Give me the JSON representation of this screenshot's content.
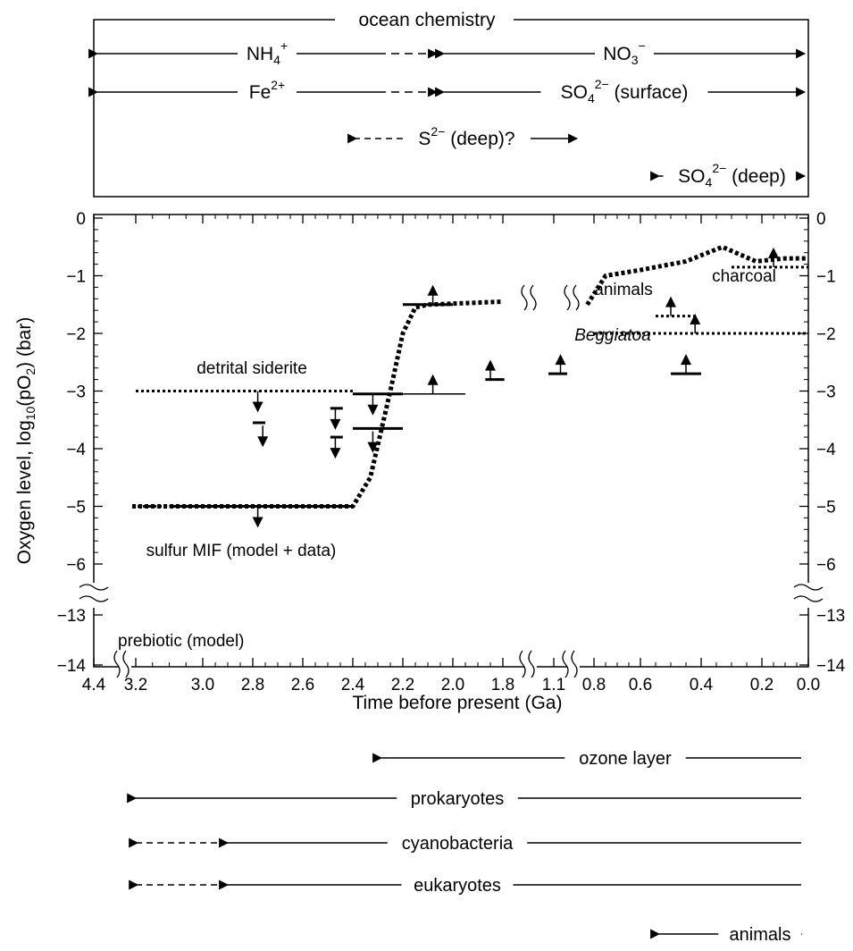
{
  "ocean_chemistry": {
    "title": "ocean chemistry",
    "rows": [
      {
        "label": "NH4+",
        "base": "NH",
        "sub": "4",
        "sup": "+",
        "from": 4.4,
        "to": 2.05,
        "dashed_from": 2.3
      },
      {
        "label": "NO3−",
        "base": "NO",
        "sub": "3",
        "sup": "−",
        "from": 2.05,
        "to": 0.0
      },
      {
        "label": "Fe2+",
        "base": "Fe",
        "sub": "",
        "sup": "2+",
        "from": 4.4,
        "to": 2.05,
        "dashed_from": 2.3
      },
      {
        "label": "SO42− (surface)",
        "base": "SO",
        "sub": "4",
        "sup": "2−",
        "suffix": " (surface)",
        "from": 2.05,
        "to": 0.0
      },
      {
        "label": "S2− (deep)?",
        "base": "S",
        "sub": "",
        "sup": "2−",
        "suffix": " (deep)?",
        "from": 2.4,
        "to": 0.9,
        "dashed": "left"
      },
      {
        "label": "SO42− (deep)",
        "base": "SO",
        "sub": "4",
        "sup": "2−",
        "suffix": " (deep)",
        "from": 0.55,
        "to": 0.0
      }
    ]
  },
  "chart_data": {
    "type": "line",
    "xlabel": "Time before present (Ga)",
    "ylabel_parts": {
      "a": "Oxygen level, log",
      "sub": "10",
      "b": "(pO",
      "sub2": "2",
      "c": ") (bar)"
    },
    "x_ticks": [
      "4.4",
      "3.2",
      "3.0",
      "2.8",
      "2.6",
      "2.4",
      "2.2",
      "2.0",
      "1.8",
      "1.1",
      "0.8",
      "0.6",
      "0.4",
      "0.2",
      "0.0"
    ],
    "y_ticks": [
      "0",
      "−1",
      "−2",
      "−3",
      "−4",
      "−5",
      "−6",
      "−13",
      "−14"
    ],
    "x_breaks": [
      "between 4.4 and 3.2",
      "between 1.8 and 1.1",
      "between 1.1 and 0.8"
    ],
    "y_break": "between −6 and −13",
    "oxygen_curve": [
      {
        "t": 3.3,
        "y": -5.0
      },
      {
        "t": 2.4,
        "y": -5.0
      },
      {
        "t": 2.33,
        "y": -4.5
      },
      {
        "t": 2.25,
        "y": -3.0
      },
      {
        "t": 2.2,
        "y": -2.0
      },
      {
        "t": 2.15,
        "y": -1.55
      },
      {
        "t": 2.1,
        "y": -1.5
      },
      {
        "t": 1.8,
        "y": -1.45
      }
    ],
    "oxygen_curve_late": [
      {
        "t": 0.85,
        "y": -1.5
      },
      {
        "t": 0.75,
        "y": -1.0
      },
      {
        "t": 0.6,
        "y": -0.9
      },
      {
        "t": 0.45,
        "y": -0.75
      },
      {
        "t": 0.33,
        "y": -0.5
      },
      {
        "t": 0.22,
        "y": -0.75
      },
      {
        "t": 0.1,
        "y": -0.7
      },
      {
        "t": 0.0,
        "y": -0.7
      }
    ],
    "constraints": [
      {
        "label": "sulfur MIF (model + data)",
        "from": 3.1,
        "to": 2.4,
        "y": -5.0,
        "kind": "upper",
        "dotted_lead": 3.3
      },
      {
        "label": "detrital siderite",
        "from": 3.2,
        "to": 2.4,
        "y": -3.0,
        "kind": "upper-dotted"
      },
      {
        "label": "animals",
        "from": 0.55,
        "to": 0.42,
        "y": -1.7,
        "kind": "lower-dotted"
      },
      {
        "label": "Beggiatoa",
        "from": 0.8,
        "to": 0.0,
        "y": -2.0,
        "kind": "lower-dotted"
      },
      {
        "label": "charcoal",
        "from": 0.3,
        "to": 0.0,
        "y": -0.85,
        "kind": "lower-dotted"
      }
    ],
    "upper_limits": [
      {
        "t": 2.78,
        "y": -5.0
      },
      {
        "t": 2.78,
        "y": -3.0
      },
      {
        "t": 2.76,
        "y": -3.6
      },
      {
        "t": 2.47,
        "y": -3.3
      },
      {
        "t": 2.47,
        "y": -3.8
      },
      {
        "t": 2.32,
        "y": -3.05
      },
      {
        "t": 2.32,
        "y": -3.7
      }
    ],
    "lower_limits": [
      {
        "t": 2.08,
        "y": -1.5
      },
      {
        "t": 2.08,
        "y": -3.05
      },
      {
        "t": 1.85,
        "y": -2.8
      },
      {
        "t": 1.05,
        "y": -2.7
      },
      {
        "t": 0.5,
        "y": -1.7
      },
      {
        "t": 0.42,
        "y": -2.0
      },
      {
        "t": 0.45,
        "y": -2.7
      },
      {
        "t": 0.15,
        "y": -0.85
      }
    ],
    "levels": [
      {
        "from": 2.2,
        "to": 2.0,
        "y": -1.5
      },
      {
        "from": 2.4,
        "to": 2.2,
        "y": -3.05
      },
      {
        "from": 2.2,
        "to": 1.95,
        "y": -3.05,
        "thin": true
      },
      {
        "from": 2.4,
        "to": 2.2,
        "y": -3.65
      },
      {
        "from": 1.87,
        "to": 1.78,
        "y": -2.8
      },
      {
        "from": 1.14,
        "to": 1.0,
        "y": -2.7
      },
      {
        "from": 0.5,
        "to": 0.4,
        "y": -2.7
      },
      {
        "from": 2.49,
        "to": 2.44,
        "y": -3.3
      },
      {
        "from": 2.49,
        "to": 2.44,
        "y": -3.8
      },
      {
        "from": 2.8,
        "to": 2.75,
        "y": -3.55
      }
    ],
    "prebiotic_label": "prebiotic (model)"
  },
  "life_timeline": [
    {
      "label": "ozone layer",
      "from": 2.3,
      "to": 0.0
    },
    {
      "label": "prokaryotes",
      "from": 3.3,
      "to": 0.0
    },
    {
      "label": "cyanobacteria",
      "from": 2.9,
      "to": 0.0,
      "dashed_from": 3.25
    },
    {
      "label": "eukaryotes",
      "from": 2.9,
      "to": 0.0,
      "dashed_from": 3.25
    },
    {
      "label": "animals",
      "from": 0.55,
      "to": 0.0
    }
  ],
  "colors": {
    "ink": "#000000",
    "background": "#ffffff"
  }
}
